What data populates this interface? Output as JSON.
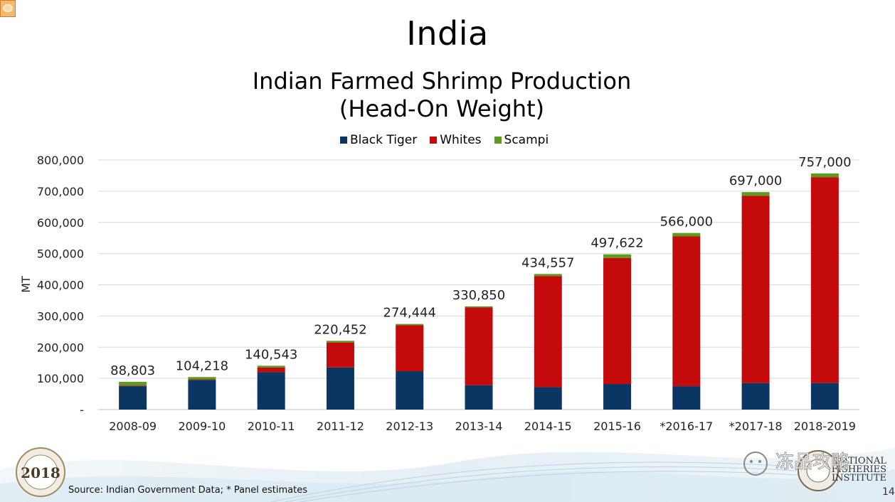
{
  "slide": {
    "title": "India",
    "source": "Source: Indian Government Data; * Panel estimates",
    "page_number": "14",
    "logo_left_year": "2018",
    "logo_left_text": "NFI GLOBAL SEAFOOD MARKET CONFERENCE",
    "logo_right_text_1": "NATIONAL",
    "logo_right_text_2": "FISHERIES",
    "logo_right_text_3": "INSTITUTE",
    "watermark": "冻品攻略"
  },
  "colors": {
    "black_tiger": "#0b3563",
    "whites": "#c40a0a",
    "scampi": "#5d9a1e",
    "grid": "#d9d9d9",
    "axis": "#bfbfbf"
  },
  "chart_data": {
    "type": "bar",
    "stacked": true,
    "title": "Indian Farmed Shrimp Production",
    "subtitle": "(Head-On Weight)",
    "ylabel": "MT",
    "xlabel": "",
    "ylim": [
      0,
      800000
    ],
    "yticks": [
      0,
      100000,
      200000,
      300000,
      400000,
      500000,
      600000,
      700000,
      800000
    ],
    "ytick_labels": [
      "-",
      "100,000",
      "200,000",
      "300,000",
      "400,000",
      "500,000",
      "600,000",
      "700,000",
      "800,000"
    ],
    "grid": true,
    "legend_position": "top",
    "categories": [
      "2008-09",
      "2009-10",
      "2010-11",
      "2011-12",
      "2012-13",
      "2013-14",
      "2014-15",
      "2015-16",
      "*2016-17",
      "*2017-18",
      "2018-2019"
    ],
    "series": [
      {
        "name": "Black Tiger",
        "color_key": "black_tiger",
        "values": [
          75000,
          95000,
          120000,
          135000,
          123000,
          78000,
          72000,
          82000,
          75000,
          85000,
          85000
        ]
      },
      {
        "name": "Whites",
        "color_key": "whites",
        "values": [
          2000,
          2000,
          15000,
          80000,
          147000,
          249000,
          356000,
          404000,
          480000,
          600000,
          660000
        ]
      },
      {
        "name": "Scampi",
        "color_key": "scampi",
        "values": [
          11803,
          7218,
          5543,
          5452,
          4444,
          3850,
          6557,
          11622,
          11000,
          12000,
          12000
        ]
      }
    ],
    "totals": [
      88803,
      104218,
      140543,
      220452,
      274444,
      330850,
      434557,
      497622,
      566000,
      697000,
      757000
    ],
    "total_labels": [
      "88,803",
      "104,218",
      "140,543",
      "220,452",
      "274,444",
      "330,850",
      "434,557",
      "497,622",
      "566,000",
      "697,000",
      "757,000"
    ]
  }
}
